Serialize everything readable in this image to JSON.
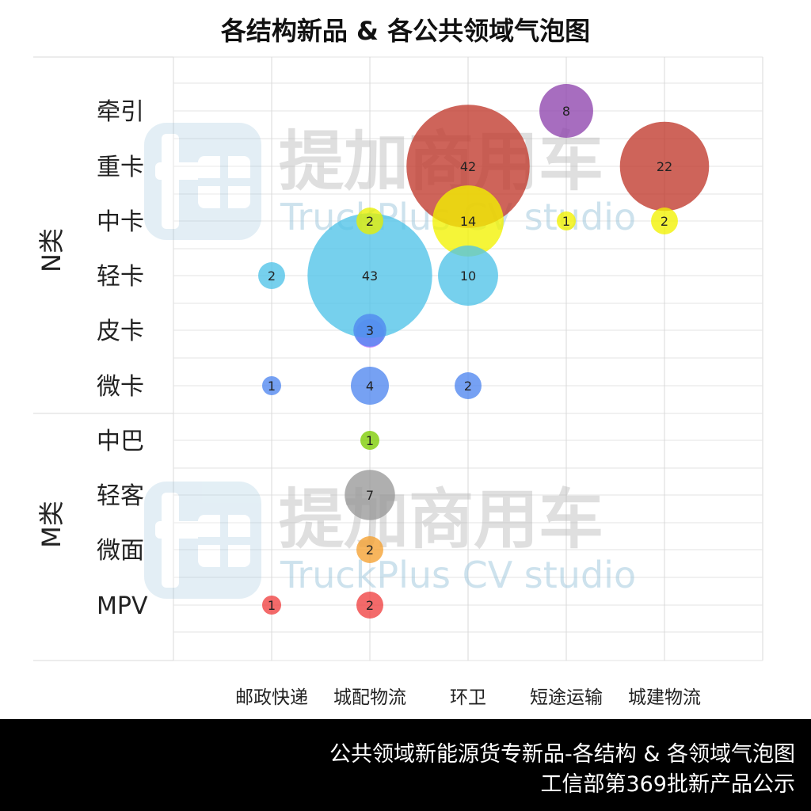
{
  "chart_data": {
    "type": "scatter",
    "title": "各结构新品 & 各公共领域气泡图",
    "x_categories": [
      "邮政快递",
      "城配物流",
      "环卫",
      "短途运输",
      "城建物流"
    ],
    "y_categories": [
      "牵引",
      "重卡",
      "中卡",
      "轻卡",
      "皮卡",
      "微卡",
      "中巴",
      "轻客",
      "微面",
      "MPV"
    ],
    "y_groups": [
      {
        "name": "N类",
        "categories": [
          "牵引",
          "重卡",
          "中卡",
          "轻卡",
          "皮卡",
          "微卡"
        ]
      },
      {
        "name": "M类",
        "categories": [
          "中巴",
          "轻客",
          "微面",
          "MPV"
        ]
      }
    ],
    "grid": true,
    "bubbles": [
      {
        "x": "短途运输",
        "y": "牵引",
        "value": 8,
        "color": "#8e44ad"
      },
      {
        "x": "环卫",
        "y": "重卡",
        "value": 42,
        "color": "#c0392b"
      },
      {
        "x": "城建物流",
        "y": "重卡",
        "value": 22,
        "color": "#c0392b"
      },
      {
        "x": "城配物流",
        "y": "中卡",
        "value": 2,
        "color": "#e8f000"
      },
      {
        "x": "环卫",
        "y": "中卡",
        "value": 14,
        "color": "#f2f200"
      },
      {
        "x": "短途运输",
        "y": "中卡",
        "value": 1,
        "color": "#f2f200"
      },
      {
        "x": "城建物流",
        "y": "中卡",
        "value": 2,
        "color": "#f2f200"
      },
      {
        "x": "邮政快递",
        "y": "轻卡",
        "value": 2,
        "color": "#4fc3e8"
      },
      {
        "x": "城配物流",
        "y": "轻卡",
        "value": 43,
        "color": "#4fc3e8"
      },
      {
        "x": "环卫",
        "y": "轻卡",
        "value": 10,
        "color": "#4fc3e8"
      },
      {
        "x": "城配物流",
        "y": "皮卡",
        "value": 3,
        "color": "#4f86f0"
      },
      {
        "x": "邮政快递",
        "y": "微卡",
        "value": 1,
        "color": "#4f86f0"
      },
      {
        "x": "城配物流",
        "y": "微卡",
        "value": 4,
        "color": "#4f86f0"
      },
      {
        "x": "环卫",
        "y": "微卡",
        "value": 2,
        "color": "#4f86f0"
      },
      {
        "x": "城配物流",
        "y": "中巴",
        "value": 1,
        "color": "#7ccc00"
      },
      {
        "x": "城配物流",
        "y": "轻客",
        "value": 7,
        "color": "#999999"
      },
      {
        "x": "城配物流",
        "y": "微面",
        "value": 2,
        "color": "#f5a030"
      },
      {
        "x": "邮政快递",
        "y": "MPV",
        "value": 1,
        "color": "#f04040"
      },
      {
        "x": "城配物流",
        "y": "MPV",
        "value": 2,
        "color": "#f04040"
      }
    ],
    "extra_marks": [
      {
        "x": "城配物流",
        "y": "皮卡",
        "color": "#c77dff",
        "note": "purple bubble partially behind 3"
      }
    ]
  },
  "watermark": {
    "brand_cn": "提加商用车",
    "brand_en": "TruckPlus CV studio"
  },
  "footer": {
    "line1": "公共领域新能源货专新品-各结构 & 各领域气泡图",
    "line2": "工信部第369批新产品公示"
  }
}
